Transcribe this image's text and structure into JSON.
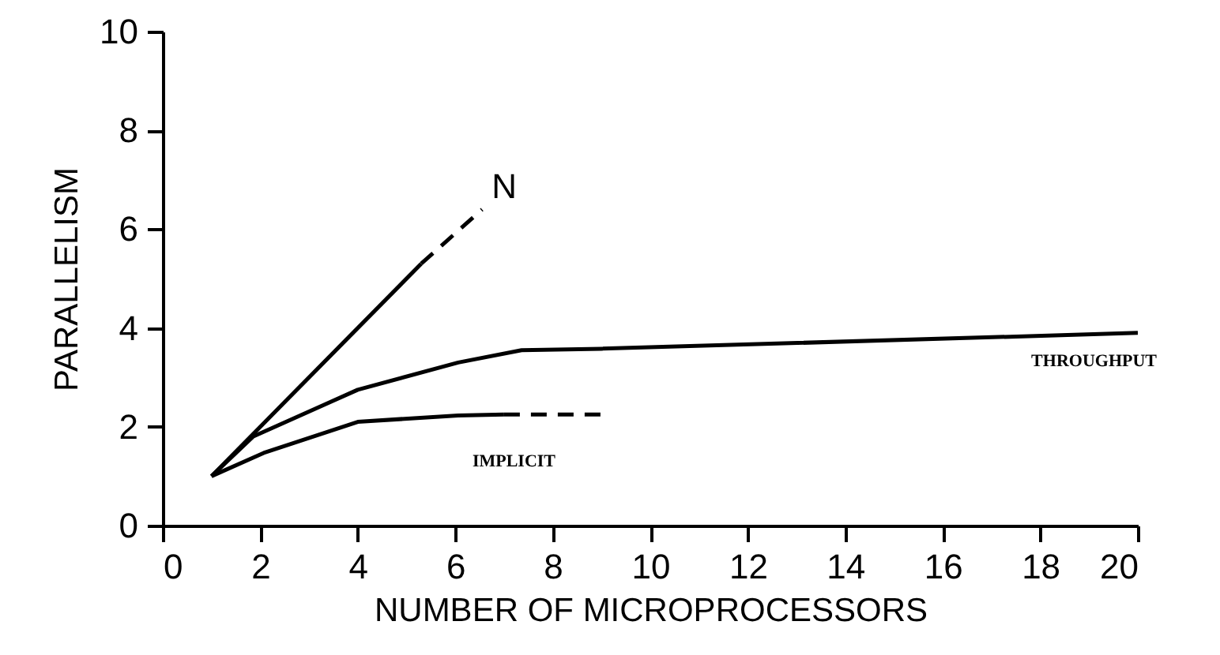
{
  "chart_data": {
    "type": "line",
    "xlabel": "NUMBER OF MICROPROCESSORS",
    "ylabel": "PARALLELISM",
    "xlim": [
      0,
      20
    ],
    "ylim": [
      0,
      10
    ],
    "xticks": [
      0,
      2,
      4,
      6,
      8,
      10,
      12,
      14,
      16,
      18,
      20
    ],
    "yticks": [
      0,
      2,
      4,
      6,
      8,
      10
    ],
    "grid": false,
    "legend": false,
    "marker": "none",
    "series": [
      {
        "name": "N",
        "color": "#000000",
        "line_style": "solid",
        "x": [
          1,
          5.3
        ],
        "values": [
          1,
          5.3
        ]
      },
      {
        "color": "#000000",
        "line_style": "dashed",
        "x": [
          5.3,
          6.55
        ],
        "values": [
          5.3,
          6.4
        ]
      },
      {
        "name": "THROUGHPUT",
        "color": "#000000",
        "line_style": "solid",
        "x": [
          1,
          1.85,
          4,
          6.06,
          7.36,
          9,
          20
        ],
        "values": [
          1,
          1.8,
          2.75,
          3.3,
          3.55,
          3.58,
          3.9
        ]
      },
      {
        "name": "IMPLICIT",
        "color": "#000000",
        "line_style": "solid",
        "x": [
          1,
          2.07,
          4,
          6.06,
          7
        ],
        "values": [
          1,
          1.47,
          2.1,
          2.23,
          2.25
        ]
      },
      {
        "color": "#000000",
        "line_style": "dashed",
        "x": [
          7,
          9
        ],
        "values": [
          2.25,
          2.25
        ]
      }
    ]
  }
}
